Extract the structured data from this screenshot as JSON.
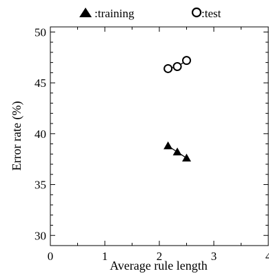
{
  "chart_data": {
    "type": "line",
    "title": "",
    "xlabel": "Average rule length",
    "ylabel": "Error rate (%)",
    "xlim": [
      0,
      4
    ],
    "ylim": [
      29,
      50.5
    ],
    "x_ticks": [
      0,
      1,
      2,
      3,
      4
    ],
    "y_ticks": [
      30,
      35,
      40,
      45,
      50
    ],
    "x_tick_labels": [
      "0",
      "1",
      "2",
      "3",
      "4"
    ],
    "y_tick_labels": [
      "30",
      "35",
      "40",
      "45",
      "50"
    ],
    "legend_position": "top",
    "grid": false,
    "series": [
      {
        "name": ":training",
        "marker": "filled-triangle",
        "color": "#000000",
        "x": [
          2.16,
          2.33,
          2.5
        ],
        "y": [
          38.8,
          38.2,
          37.6
        ]
      },
      {
        "name": ":test",
        "marker": "open-circle",
        "color": "#000000",
        "x": [
          2.16,
          2.33,
          2.5
        ],
        "y": [
          46.4,
          46.6,
          47.2
        ]
      }
    ]
  }
}
